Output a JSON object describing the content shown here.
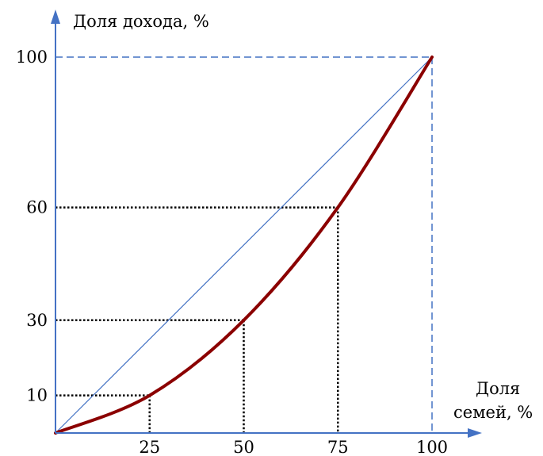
{
  "chart_data": {
    "type": "line",
    "ylabel": "Доля дохода, %",
    "xlabel_lines": [
      "Доля",
      "семей, %"
    ],
    "xlim": [
      0,
      100
    ],
    "ylim": [
      0,
      100
    ],
    "x_ticks": [
      "25",
      "50",
      "75",
      "100"
    ],
    "y_ticks": [
      "10",
      "30",
      "60",
      "100"
    ],
    "equality_line": [
      [
        0,
        0
      ],
      [
        100,
        100
      ]
    ],
    "lorenz_curve": {
      "points": [
        [
          0,
          0
        ],
        [
          25,
          10
        ],
        [
          50,
          30
        ],
        [
          75,
          60
        ],
        [
          100,
          100
        ]
      ]
    },
    "guides": [
      [
        25,
        10
      ],
      [
        50,
        30
      ],
      [
        75,
        60
      ]
    ],
    "colors": {
      "axis": "#4472c4",
      "equality": "#4472c4",
      "curve": "#8b0000",
      "guide": "#000000",
      "frame": "#4472c4"
    }
  }
}
